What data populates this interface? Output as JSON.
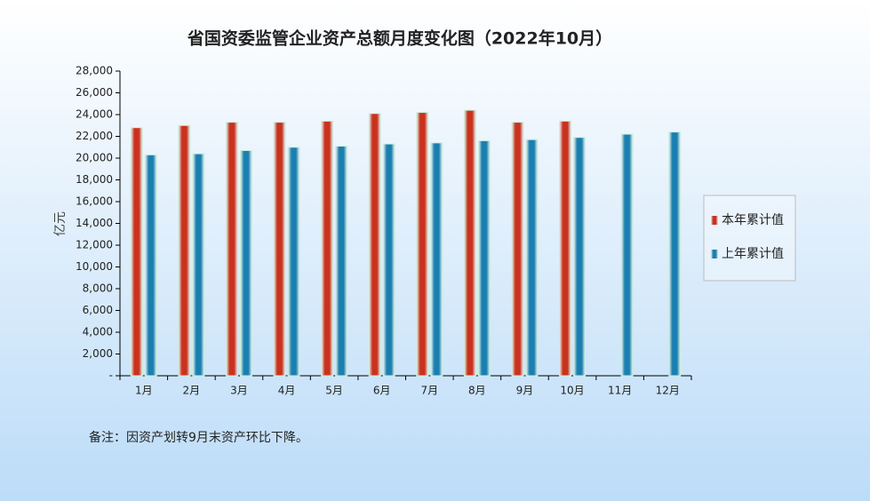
{
  "chart_data": {
    "type": "bar",
    "title": "省国资委监管企业资产总额月度变化图（2022年10月）",
    "y_label": "亿元",
    "note": "备注：因资产划转9月末资产环比下降。",
    "categories": [
      "1月",
      "2月",
      "3月",
      "4月",
      "5月",
      "6月",
      "7月",
      "8月",
      "9月",
      "10月",
      "11月",
      "12月"
    ],
    "series": [
      {
        "name": "本年累计值",
        "color": "#c8321e",
        "values": [
          22800,
          23000,
          23300,
          23300,
          23400,
          24100,
          24200,
          24400,
          23300,
          23400,
          null,
          null
        ]
      },
      {
        "name": "上年累计值",
        "color": "#1a7fb0",
        "values": [
          20300,
          20400,
          20700,
          21000,
          21100,
          21300,
          21400,
          21600,
          21700,
          21900,
          22200,
          22400
        ]
      }
    ],
    "ylim": [
      0,
      28000
    ],
    "yticks": [
      {
        "value": 0,
        "label": "-"
      },
      {
        "value": 2000,
        "label": "2,000"
      },
      {
        "value": 4000,
        "label": "4,000"
      },
      {
        "value": 6000,
        "label": "6,000"
      },
      {
        "value": 8000,
        "label": "8,000"
      },
      {
        "value": 10000,
        "label": "10,000"
      },
      {
        "value": 12000,
        "label": "12,000"
      },
      {
        "value": 14000,
        "label": "14,000"
      },
      {
        "value": 16000,
        "label": "16,000"
      },
      {
        "value": 18000,
        "label": "18,000"
      },
      {
        "value": 20000,
        "label": "20,000"
      },
      {
        "value": 22000,
        "label": "22,000"
      },
      {
        "value": 24000,
        "label": "24,000"
      },
      {
        "value": 26000,
        "label": "26,000"
      },
      {
        "value": 28000,
        "label": "28,000"
      }
    ],
    "legend": "right",
    "grid": false
  }
}
